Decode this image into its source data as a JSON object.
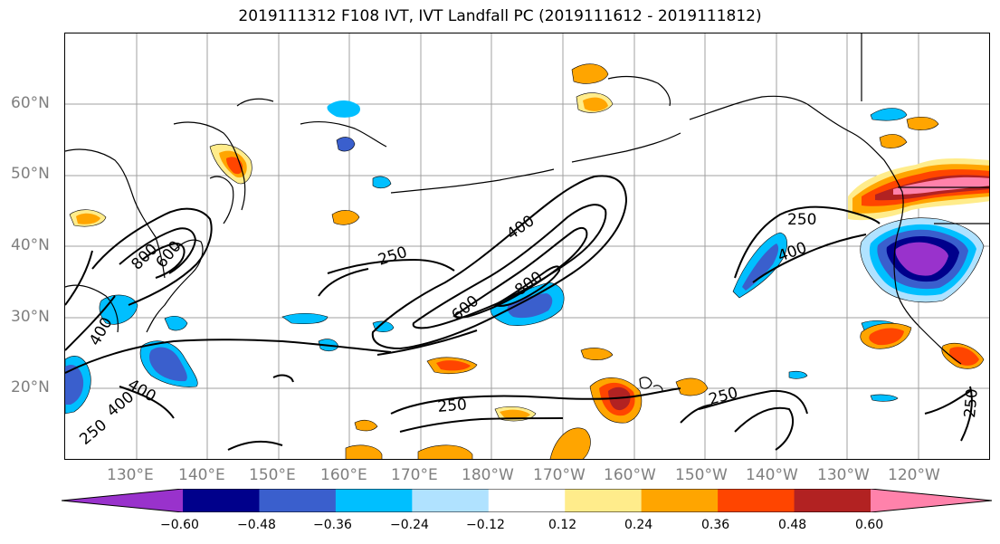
{
  "title": "2019111312 F108 IVT, IVT Landfall PC (2019111612 - 2019111812)",
  "lat_labels": [
    "60°N",
    "50°N",
    "40°N",
    "30°N",
    "20°N"
  ],
  "lon_labels": [
    "130°E",
    "140°E",
    "150°E",
    "160°E",
    "170°E",
    "180°W",
    "170°W",
    "160°W",
    "150°W",
    "140°W",
    "130°W",
    "120°W"
  ],
  "contour_labels": {
    "c250_west": "250",
    "c400_mid": "400",
    "c600_mid": "600",
    "c800_mid": "800",
    "c250_east": "250",
    "c400_east": "400",
    "c800_asia": "800",
    "c600_asia": "600",
    "c400_asia": "400",
    "c400_asia2": "400",
    "c400_sw": "400",
    "c250_sw": "250",
    "c250_south": "250",
    "c250_se": "250",
    "c250_right": "250"
  },
  "colorbar": {
    "ticks": [
      "−0.60",
      "−0.48",
      "−0.36",
      "−0.24",
      "−0.12",
      "0.12",
      "0.24",
      "0.36",
      "0.48",
      "0.60"
    ],
    "colors": [
      "#9932cc",
      "#00008b",
      "#3a5fcd",
      "#00bfff",
      "#b0e2ff",
      "#ffffff",
      "#ffec8b",
      "#ffa500",
      "#ff4500",
      "#b22222",
      "#ff82ab"
    ]
  }
}
